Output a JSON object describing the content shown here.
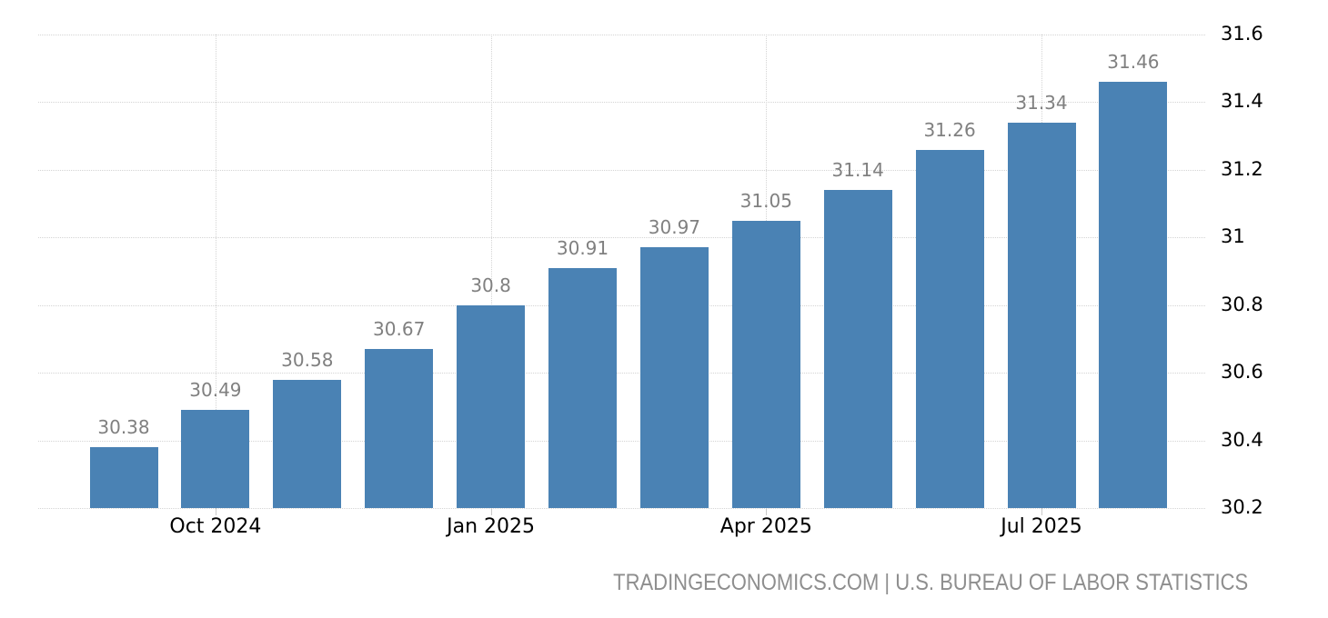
{
  "chart_data": {
    "type": "bar",
    "title": "",
    "xlabel": "",
    "ylabel": "",
    "values": [
      30.38,
      30.49,
      30.58,
      30.67,
      30.8,
      30.91,
      30.97,
      31.05,
      31.14,
      31.26,
      31.34,
      31.46
    ],
    "value_labels": [
      "30.38",
      "30.49",
      "30.58",
      "30.67",
      "30.8",
      "30.91",
      "30.97",
      "31.05",
      "31.14",
      "31.26",
      "31.34",
      "31.46"
    ],
    "x_ticks": [
      {
        "bar_index": 1,
        "label": "Oct 2024"
      },
      {
        "bar_index": 4,
        "label": "Jan 2025"
      },
      {
        "bar_index": 7,
        "label": "Apr 2025"
      },
      {
        "bar_index": 10,
        "label": "Jul 2025"
      }
    ],
    "y_ticks": [
      {
        "value": 30.2,
        "label": "30.2"
      },
      {
        "value": 30.4,
        "label": "30.4"
      },
      {
        "value": 30.6,
        "label": "30.6"
      },
      {
        "value": 30.8,
        "label": "30.8"
      },
      {
        "value": 31.0,
        "label": "31"
      },
      {
        "value": 31.2,
        "label": "31.2"
      },
      {
        "value": 31.4,
        "label": "31.4"
      },
      {
        "value": 31.6,
        "label": "31.6"
      }
    ],
    "ylim": [
      30.2,
      31.6
    ],
    "y_axis_side": "right",
    "grid": "dotted",
    "legend": "none",
    "colors": {
      "bar": "#4A82B4",
      "value_label": "#808080",
      "axis_label": "#000000",
      "gridline": "#d4d4d4",
      "attribution": "#8e8e8e",
      "background": "#ffffff"
    }
  },
  "footer": {
    "attribution": "TRADINGECONOMICS.COM | U.S. BUREAU OF LABOR STATISTICS"
  }
}
